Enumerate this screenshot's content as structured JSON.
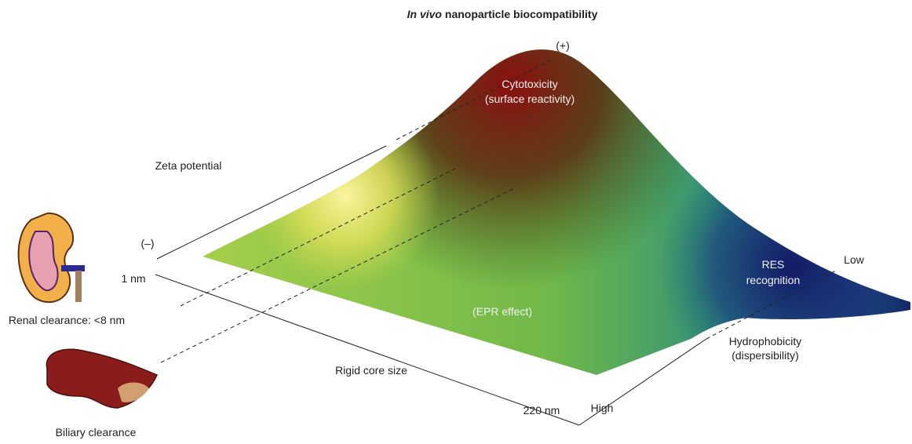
{
  "title": {
    "italic": "In vivo",
    "rest": " nanoparticle biocompatibility"
  },
  "labels": {
    "plus": "(+)",
    "cytotoxicity": "Cytotoxicity",
    "surface_reactivity": "(surface reactivity)",
    "zeta_potential": "Zeta potential",
    "minus": "(–)",
    "one_nm": "1 nm",
    "renal": "Renal clearance: <8 nm",
    "res": "RES",
    "recognition": "recognition",
    "low": "Low",
    "epr": "(EPR effect)",
    "hydrophobicity": "Hydrophobicity",
    "dispersibility": "(dispersibility)",
    "rigid_core": "Rigid core size",
    "size_220": "220 nm",
    "high": "High",
    "biliary": "Biliary clearance"
  }
}
